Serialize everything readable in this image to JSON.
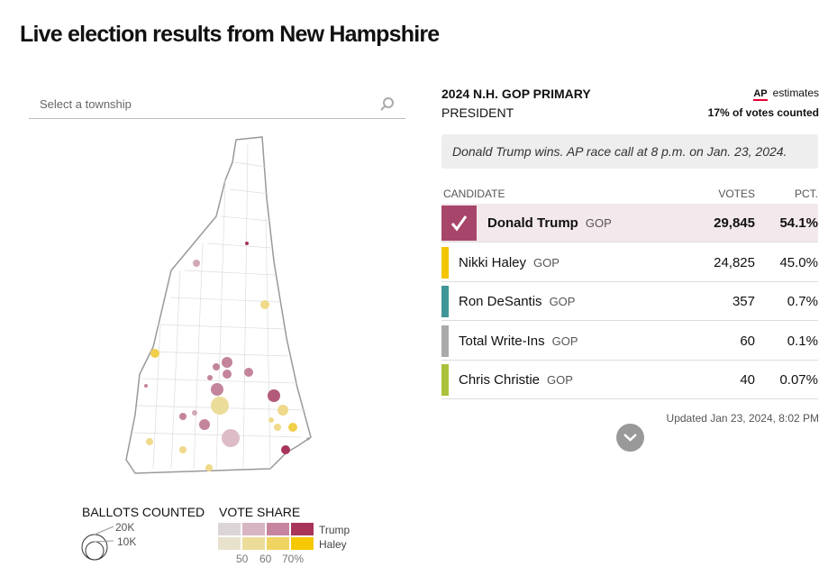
{
  "header": {
    "title": "Live election results from New Hampshire"
  },
  "search": {
    "placeholder": "Select a township"
  },
  "race": {
    "title": "2024 N.H. GOP PRIMARY",
    "office": "PRESIDENT",
    "source": "AP",
    "source_note": "estimates",
    "counted": "17% of votes counted",
    "call": "Donald Trump wins. AP race call at 8 p.m. on Jan. 23, 2024."
  },
  "table": {
    "columns": [
      "CANDIDATE",
      "VOTES",
      "PCT."
    ],
    "rows": [
      {
        "name": "Donald Trump",
        "party": "GOP",
        "votes": "29,845",
        "pct": "54.1%",
        "color": "#a8456a",
        "winner": true
      },
      {
        "name": "Nikki Haley",
        "party": "GOP",
        "votes": "24,825",
        "pct": "45.0%",
        "color": "#f2c500",
        "winner": false
      },
      {
        "name": "Ron DeSantis",
        "party": "GOP",
        "votes": "357",
        "pct": "0.7%",
        "color": "#3f9696",
        "winner": false
      },
      {
        "name": "Total Write-Ins",
        "party": "GOP",
        "votes": "60",
        "pct": "0.1%",
        "color": "#aaaaaa",
        "winner": false
      },
      {
        "name": "Chris Christie",
        "party": "GOP",
        "votes": "40",
        "pct": "0.07%",
        "color": "#a9c23a",
        "winner": false
      }
    ]
  },
  "updated": "Updated  Jan 23, 2024, 8:02 PM",
  "legend": {
    "ballots_title": "BALLOTS COUNTED",
    "ballots_sizes": [
      "20K",
      "10K"
    ],
    "share_title": "VOTE SHARE",
    "share_names": [
      "Trump",
      "Haley"
    ],
    "share_steps": [
      "50",
      "60",
      "70%"
    ]
  }
}
